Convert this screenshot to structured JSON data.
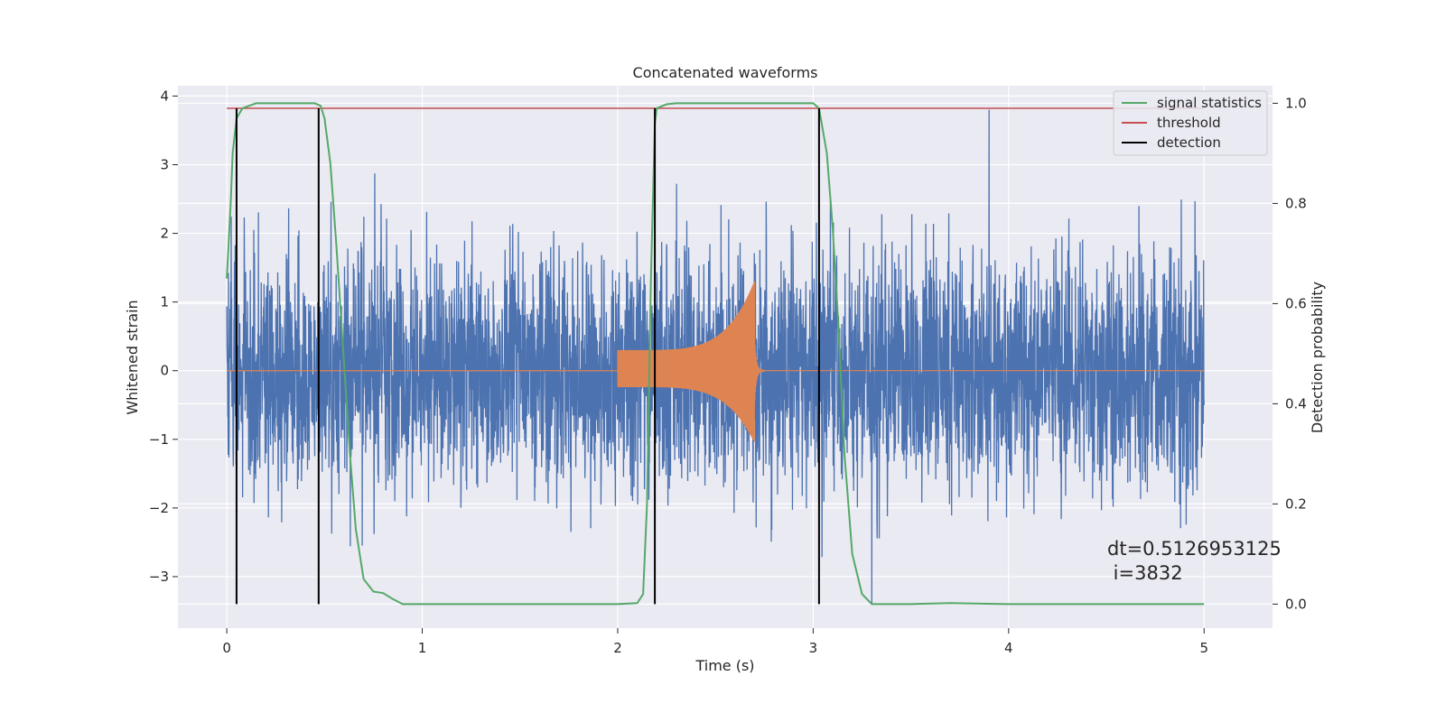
{
  "chart_data": {
    "type": "line",
    "title": "Concatenated waveforms",
    "xlabel": "Time (s)",
    "ylabel": "Whitened strain",
    "y2label": "Detection probability",
    "xlim": [
      -0.25,
      5.35
    ],
    "ylim": [
      -3.75,
      4.15
    ],
    "y2lim": [
      -0.048,
      1.035
    ],
    "xticks": [
      0,
      1,
      2,
      3,
      4,
      5
    ],
    "yticks": [
      -3,
      -2,
      -1,
      0,
      1,
      2,
      3,
      4
    ],
    "y2ticks": [
      0.0,
      0.2,
      0.4,
      0.6,
      0.8,
      1.0
    ],
    "grid": true,
    "legend_position": "top-right",
    "legend": [
      {
        "label": "signal statistics",
        "color": "#55a868"
      },
      {
        "label": "threshold",
        "color": "#c44e52"
      },
      {
        "label": "detection",
        "color": "#000000"
      }
    ],
    "series": [
      {
        "role": "noise",
        "axis": "left",
        "color": "#4c72b0",
        "x_range": [
          0,
          5
        ],
        "typical_amplitude": 1.6,
        "max_value": 3.8,
        "min_value": -3.4
      },
      {
        "role": "injected-chirp",
        "axis": "left",
        "color": "#dd8452",
        "x_start": 2.0,
        "x_peak": 2.7,
        "start_amplitude": 0.3,
        "peak_amplitude": 1.3,
        "min_value": -1.05
      },
      {
        "name": "signal statistics",
        "axis": "right",
        "color": "#55a868",
        "x": [
          0,
          0.02,
          0.03,
          0.05,
          0.08,
          0.15,
          0.3,
          0.45,
          0.48,
          0.5,
          0.53,
          0.56,
          0.6,
          0.63,
          0.66,
          0.7,
          0.75,
          0.8,
          0.85,
          0.9,
          1.0,
          1.5,
          2.0,
          2.1,
          2.13,
          2.15,
          2.17,
          2.19,
          2.2,
          2.25,
          2.3,
          2.5,
          3.0,
          3.03,
          3.07,
          3.1,
          3.13,
          3.16,
          3.2,
          3.25,
          3.3,
          3.5,
          3.7,
          4.0,
          4.5,
          5.0
        ],
        "y": [
          0.65,
          0.8,
          0.9,
          0.97,
          0.99,
          1.0,
          1.0,
          1.0,
          0.995,
          0.97,
          0.88,
          0.72,
          0.48,
          0.3,
          0.15,
          0.05,
          0.025,
          0.022,
          0.01,
          0.0,
          0.0,
          0.0,
          0.0,
          0.002,
          0.02,
          0.2,
          0.65,
          0.96,
          0.99,
          0.998,
          1.0,
          1.0,
          1.0,
          0.99,
          0.9,
          0.75,
          0.55,
          0.3,
          0.1,
          0.02,
          0.0,
          0.0,
          0.002,
          0.0,
          0.0,
          0.0
        ]
      },
      {
        "name": "threshold",
        "axis": "right",
        "color": "#c44e52",
        "x": [
          0,
          5
        ],
        "y": [
          0.99,
          0.99
        ]
      }
    ],
    "detections": [
      0.05,
      0.47,
      2.19,
      3.03
    ],
    "detection_y_range": [
      0.0,
      0.99
    ],
    "annotation": {
      "lines": [
        "dt=0.5126953125",
        " i=3832"
      ],
      "x": 4.5,
      "y": -2.5
    }
  }
}
